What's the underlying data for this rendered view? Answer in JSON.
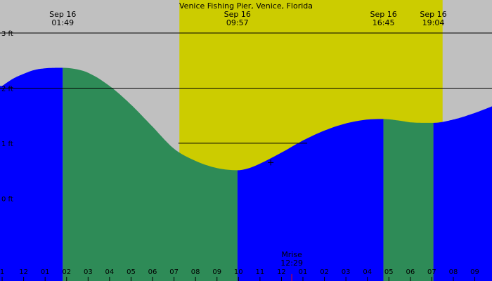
{
  "chart_data": {
    "type": "area",
    "title": "Venice Fishing Pier, Venice, Florida",
    "unit": "ft",
    "y_ticks": [
      {
        "value": 3,
        "label": "3 ft"
      },
      {
        "value": 2,
        "label": "2 ft"
      },
      {
        "value": 1,
        "label": "1 ft"
      },
      {
        "value": 0,
        "label": "0 ft"
      }
    ],
    "ylim": [
      -1.5,
      3.6
    ],
    "xlim_hours": [
      -1.1,
      21.8
    ],
    "sun": {
      "rise_h": 7.25,
      "set_h": 19.5
    },
    "series": [
      {
        "values_hours": [
          -1.0,
          -0.5,
          0.0,
          0.5,
          1.0,
          1.82,
          2.5,
          3.0,
          4.0,
          5.0,
          6.0,
          7.0,
          8.0,
          9.0,
          9.95,
          10.5,
          11.0,
          12.0,
          13.0,
          14.0,
          15.0,
          16.0,
          16.75,
          17.5,
          18.0,
          19.07,
          20.0,
          21.0,
          21.8
        ],
        "values_ft": [
          2.04,
          2.17,
          2.26,
          2.33,
          2.36,
          2.37,
          2.34,
          2.28,
          2.04,
          1.7,
          1.3,
          0.9,
          0.68,
          0.55,
          0.51,
          0.55,
          0.63,
          0.83,
          1.05,
          1.23,
          1.36,
          1.43,
          1.44,
          1.41,
          1.38,
          1.37,
          1.43,
          1.55,
          1.67
        ]
      }
    ],
    "tide_events": [
      {
        "date": "Sep 16",
        "time": "01:49",
        "hour": 1.82,
        "color": "#2e8b57"
      },
      {
        "date": "Sep 16",
        "time": "09:57",
        "hour": 9.95,
        "color": "#0000ff"
      },
      {
        "date": "Sep 16",
        "time": "16:45",
        "hour": 16.75,
        "color": "#2e8b57"
      },
      {
        "date": "Sep 16",
        "time": "19:04",
        "hour": 19.07,
        "color": "#0000ff"
      }
    ],
    "start_color": "#0000ff",
    "level_lines": [
      {
        "value": 3.0,
        "from_h": -1.1,
        "to_h": 21.8
      },
      {
        "value": 2.0,
        "from_h": -1.1,
        "to_h": 21.8
      },
      {
        "value": 1.0,
        "from_h": 7.2,
        "to_h": 13.2
      }
    ],
    "marker": {
      "hour": 11.5,
      "value": 0.65
    },
    "x_ticks": [
      {
        "hour": -1.0,
        "label": "1"
      },
      {
        "hour": 0.0,
        "label": "12"
      },
      {
        "hour": 1.0,
        "label": "01"
      },
      {
        "hour": 2.0,
        "label": "02"
      },
      {
        "hour": 3.0,
        "label": "03"
      },
      {
        "hour": 4.0,
        "label": "04"
      },
      {
        "hour": 5.0,
        "label": "05"
      },
      {
        "hour": 6.0,
        "label": "06"
      },
      {
        "hour": 7.0,
        "label": "07"
      },
      {
        "hour": 8.0,
        "label": "08"
      },
      {
        "hour": 9.0,
        "label": "09"
      },
      {
        "hour": 10.0,
        "label": "10"
      },
      {
        "hour": 11.0,
        "label": "11"
      },
      {
        "hour": 12.0,
        "label": "12"
      },
      {
        "hour": 13.0,
        "label": "01"
      },
      {
        "hour": 14.0,
        "label": "02"
      },
      {
        "hour": 15.0,
        "label": "03"
      },
      {
        "hour": 16.0,
        "label": "04"
      },
      {
        "hour": 17.0,
        "label": "05"
      },
      {
        "hour": 18.0,
        "label": "06"
      },
      {
        "hour": 19.0,
        "label": "07"
      },
      {
        "hour": 20.0,
        "label": "08"
      },
      {
        "hour": 21.0,
        "label": "09"
      }
    ],
    "moon": {
      "label": "Mrise",
      "time": "12:29",
      "hour": 12.48
    },
    "colors": {
      "night": "#c0c0c0",
      "day": "#cccc00",
      "rising": "#0000ff",
      "falling": "#2e8b57",
      "moon_tick": "#ff0000"
    }
  }
}
